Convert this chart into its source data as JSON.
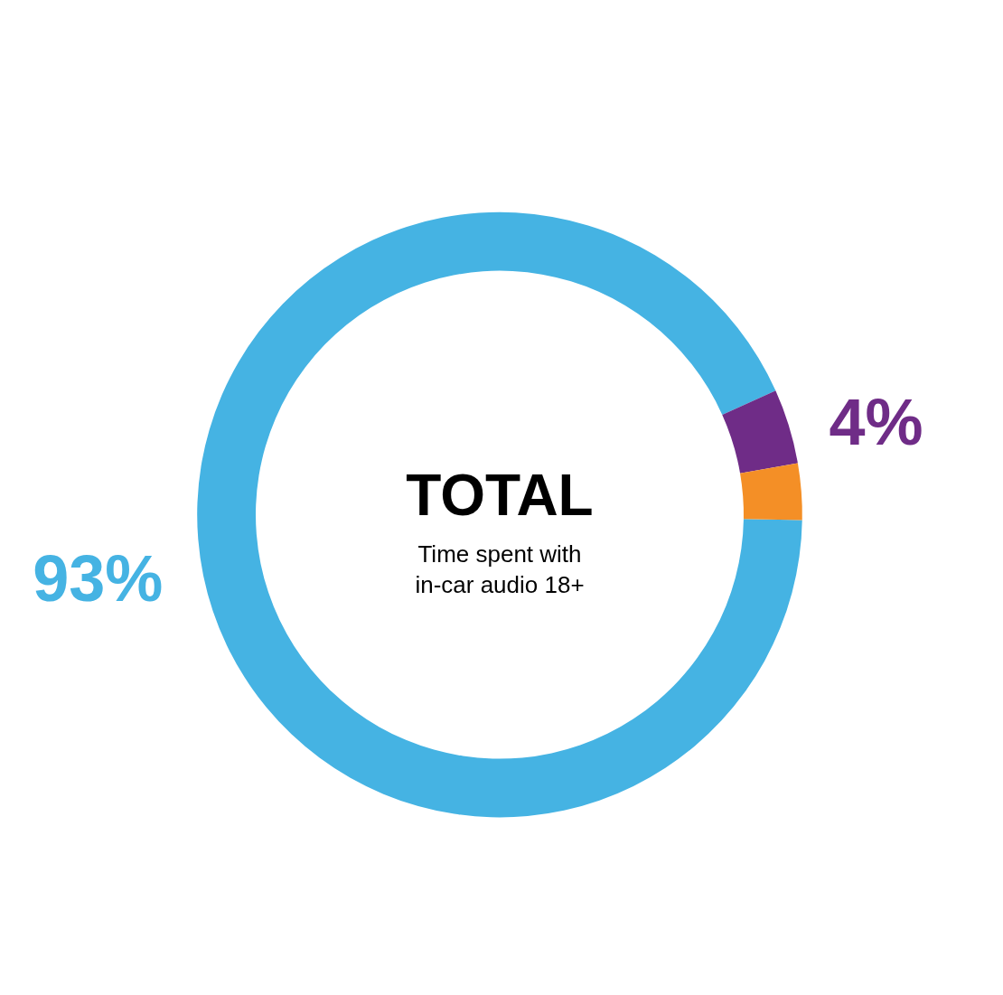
{
  "chart_data": {
    "type": "donut",
    "title": "TOTAL",
    "subtitle": "Time spent with\nin-car audio 18+",
    "categories": [
      null,
      null,
      null
    ],
    "values": [
      93,
      4,
      3
    ],
    "colors": [
      "#45b3e3",
      "#6f2c87",
      "#f48f26"
    ],
    "value_labels": [
      "93%",
      "4%",
      null
    ]
  }
}
